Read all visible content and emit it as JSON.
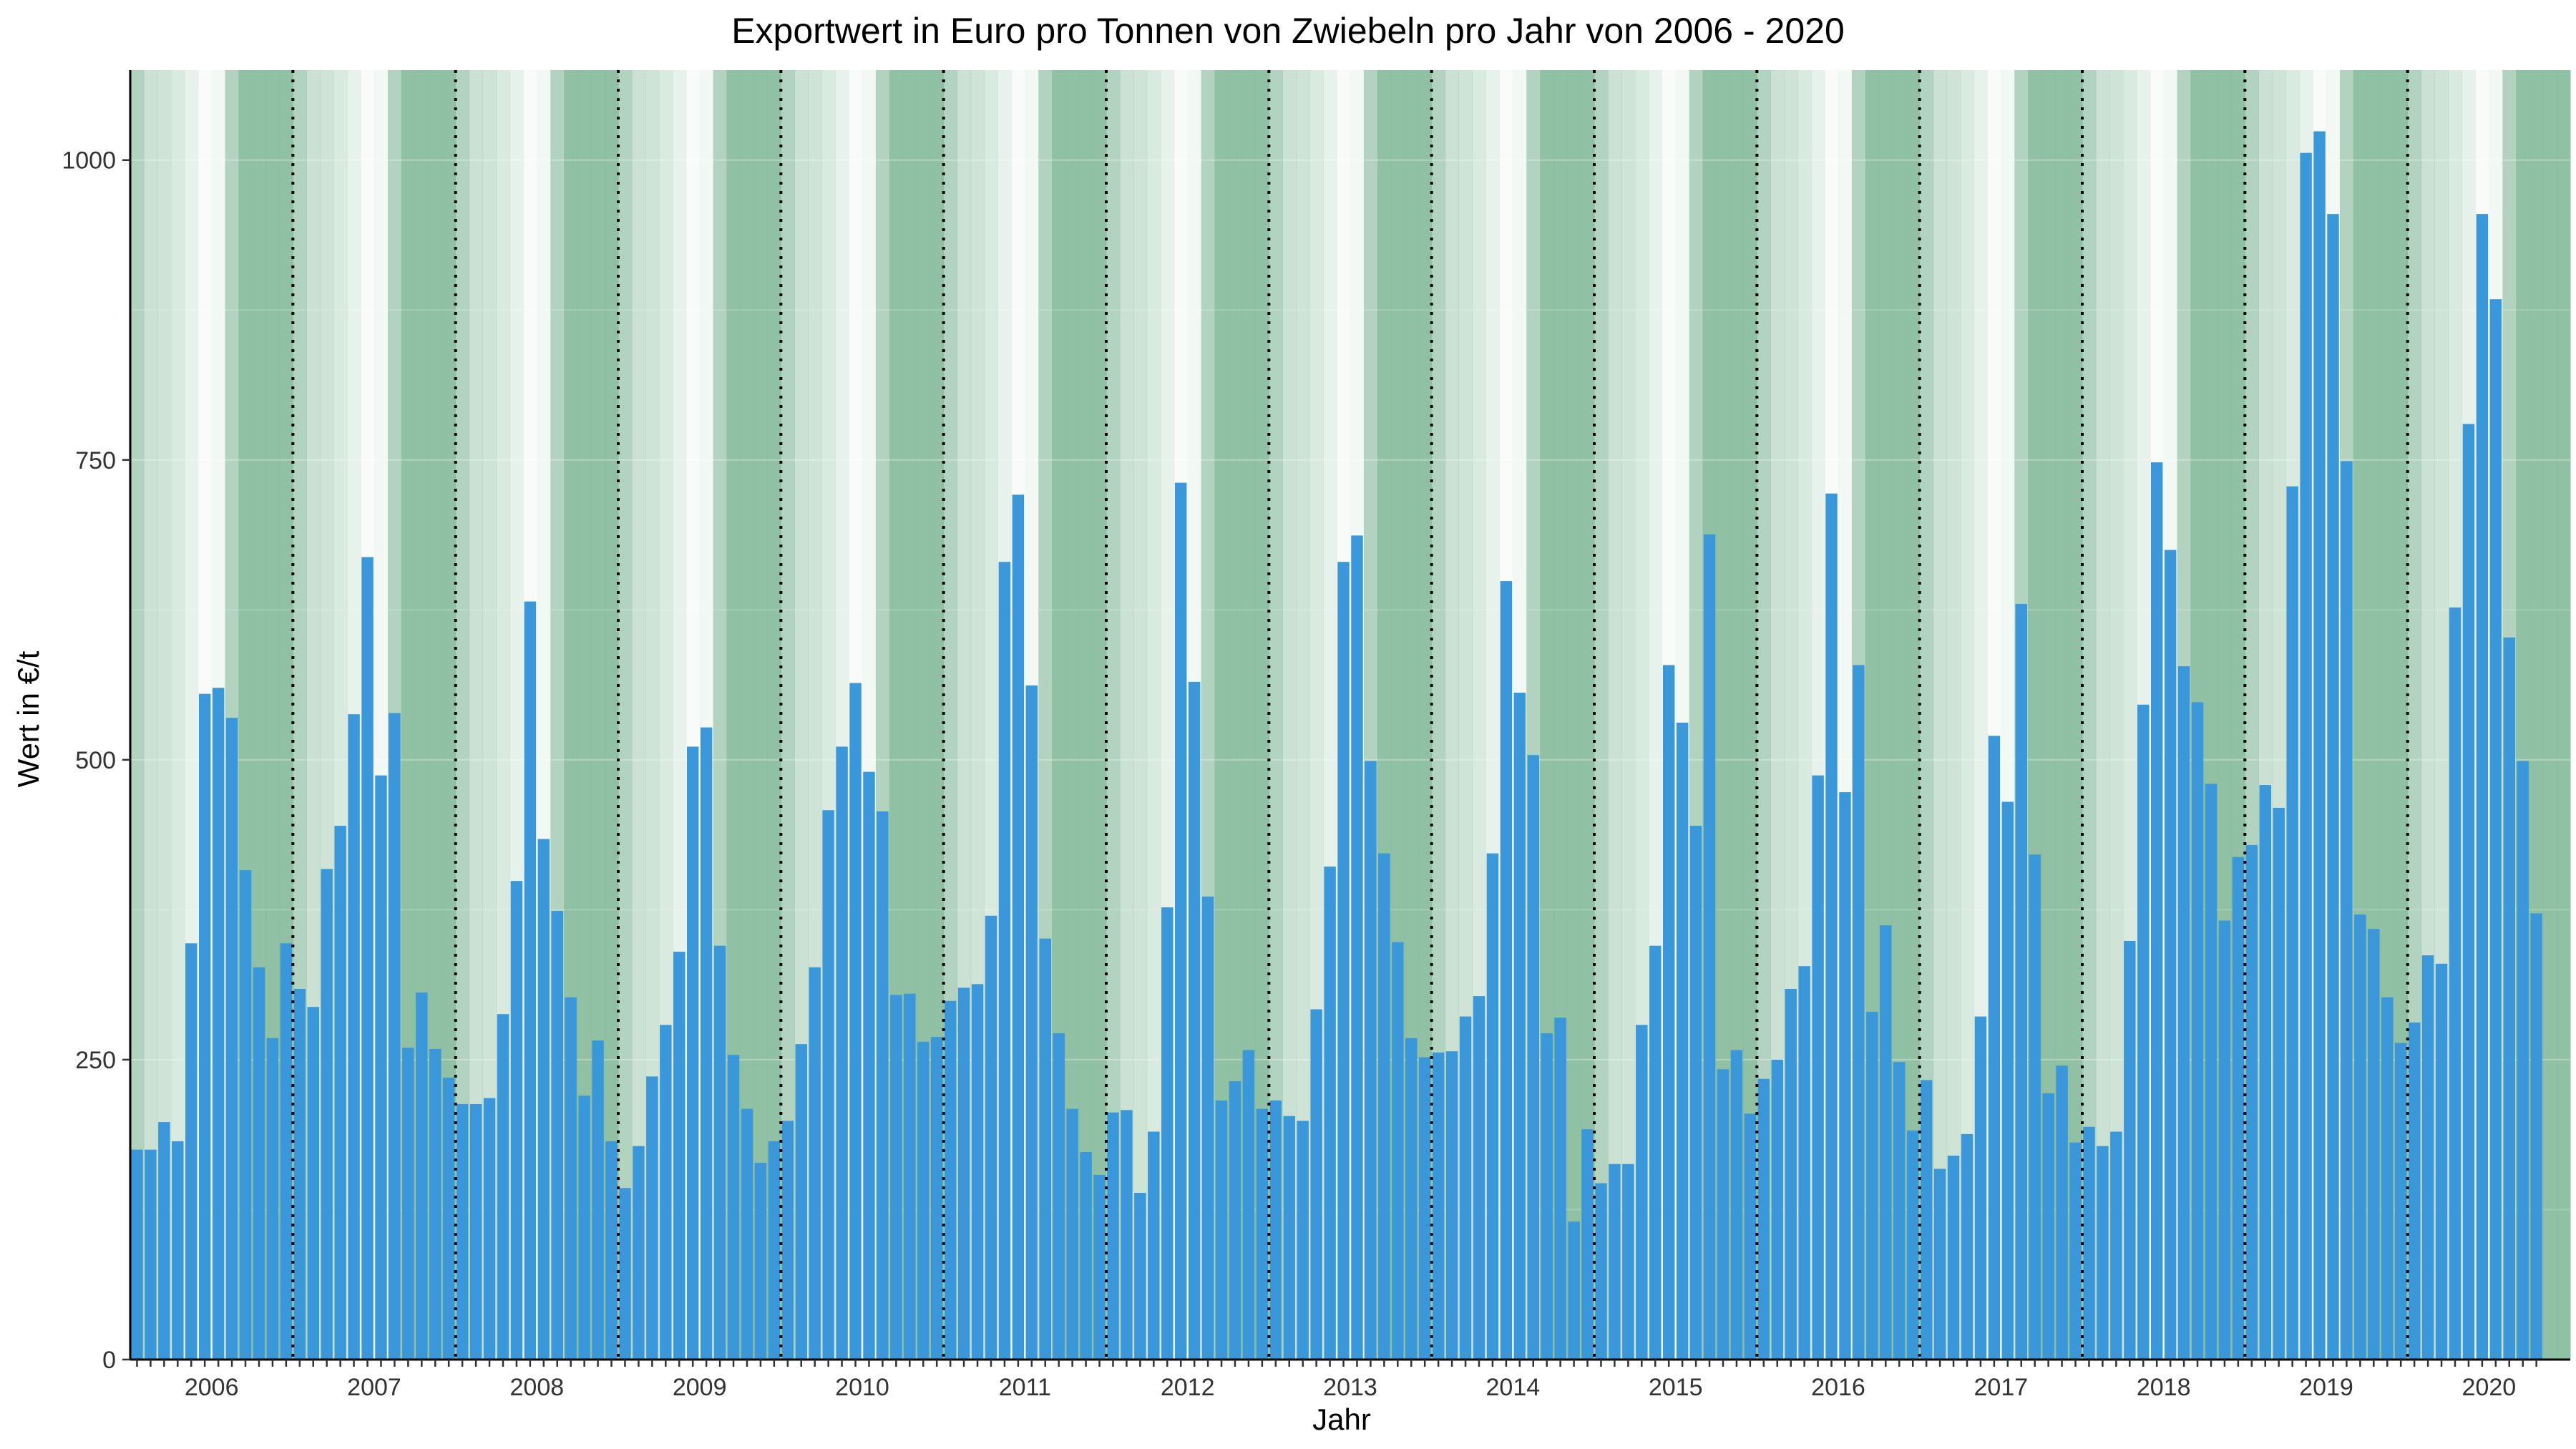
{
  "chart_data": {
    "type": "bar",
    "title": "Exportwert in Euro pro Tonnen von Zwiebeln pro Jahr von 2006 - 2020",
    "xlabel": "Jahr",
    "ylabel": "Wert in €/t",
    "ylim": [
      0,
      1075
    ],
    "yticks": [
      0,
      250,
      500,
      750,
      1000
    ],
    "years": [
      "2006",
      "2007",
      "2008",
      "2009",
      "2010",
      "2011",
      "2012",
      "2013",
      "2014",
      "2015",
      "2016",
      "2017",
      "2018",
      "2019",
      "2020"
    ],
    "months_per_year": 12,
    "grid": false,
    "legend": "none",
    "bar_color": "#3a97d9",
    "background_bands": {
      "description": "Monthly background shading, darkest in autumn/winter, lightest in spring",
      "alphas_by_month": [
        0.62,
        0.42,
        0.38,
        0.3,
        0.18,
        0.05,
        0.1,
        0.62,
        0.88,
        0.88,
        0.88,
        0.88
      ],
      "color": "#82b897"
    },
    "values": [
      175,
      175,
      198,
      182,
      347,
      555,
      560,
      535,
      408,
      327,
      268,
      347,
      309,
      294,
      409,
      445,
      538,
      669,
      487,
      539,
      260,
      306,
      259,
      235,
      213,
      213,
      218,
      288,
      399,
      632,
      434,
      374,
      302,
      220,
      266,
      182,
      143,
      178,
      236,
      279,
      340,
      511,
      527,
      345,
      254,
      209,
      164,
      182,
      199,
      263,
      327,
      458,
      511,
      564,
      490,
      457,
      304,
      305,
      265,
      269,
      299,
      310,
      313,
      370,
      665,
      721,
      562,
      351,
      272,
      209,
      173,
      154,
      206,
      208,
      139,
      190,
      377,
      731,
      565,
      386,
      216,
      232,
      258,
      209,
      216,
      203,
      199,
      292,
      411,
      665,
      687,
      499,
      422,
      348,
      268,
      252,
      256,
      257,
      286,
      303,
      422,
      649,
      556,
      504,
      272,
      285,
      115,
      192,
      147,
      163,
      163,
      279,
      345,
      579,
      531,
      445,
      688,
      242,
      258,
      205,
      234,
      250,
      309,
      328,
      487,
      722,
      473,
      579,
      290,
      362,
      248,
      191,
      233,
      159,
      170,
      188,
      286,
      520,
      465,
      630,
      421,
      222,
      245,
      181,
      194,
      178,
      190,
      349,
      546,
      748,
      675,
      578,
      548,
      480,
      366,
      419,
      429,
      479,
      460,
      728,
      1006,
      1024,
      955,
      749,
      371,
      359,
      302,
      264,
      281,
      337,
      330,
      627,
      780,
      955,
      884,
      602,
      499,
      372
    ]
  }
}
